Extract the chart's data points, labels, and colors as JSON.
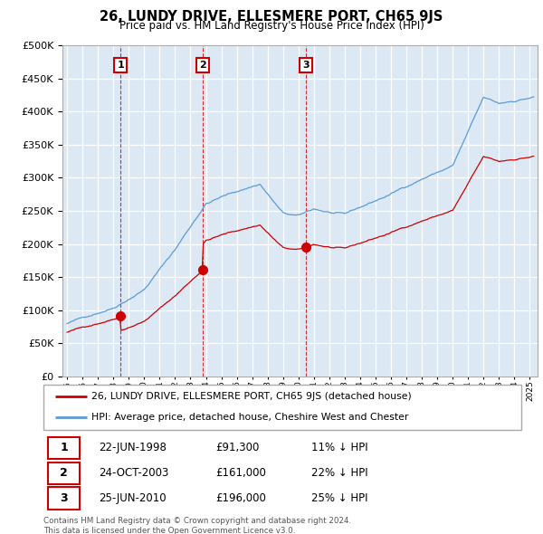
{
  "title": "26, LUNDY DRIVE, ELLESMERE PORT, CH65 9JS",
  "subtitle": "Price paid vs. HM Land Registry's House Price Index (HPI)",
  "hpi_color": "#5b9bd5",
  "sale_color": "#cc0000",
  "label_box_color": "#cc0000",
  "bg_color": "#dce9f5",
  "ylim": [
    0,
    500000
  ],
  "xlim": [
    1994.7,
    2025.5
  ],
  "legend1_text": "26, LUNDY DRIVE, ELLESMERE PORT, CH65 9JS (detached house)",
  "legend2_text": "HPI: Average price, detached house, Cheshire West and Chester",
  "sale_labels": [
    "1",
    "2",
    "3"
  ],
  "sale_years_decimal": [
    1998.47,
    2003.81,
    2010.48
  ],
  "sale_prices": [
    91300,
    161000,
    196000
  ],
  "sale_dates": [
    "22-JUN-1998",
    "24-OCT-2003",
    "25-JUN-2010"
  ],
  "sale_hpi_pct": [
    "11% ↓ HPI",
    "22% ↓ HPI",
    "25% ↓ HPI"
  ],
  "footnote": "Contains HM Land Registry data © Crown copyright and database right 2024.\nThis data is licensed under the Open Government Licence v3.0."
}
